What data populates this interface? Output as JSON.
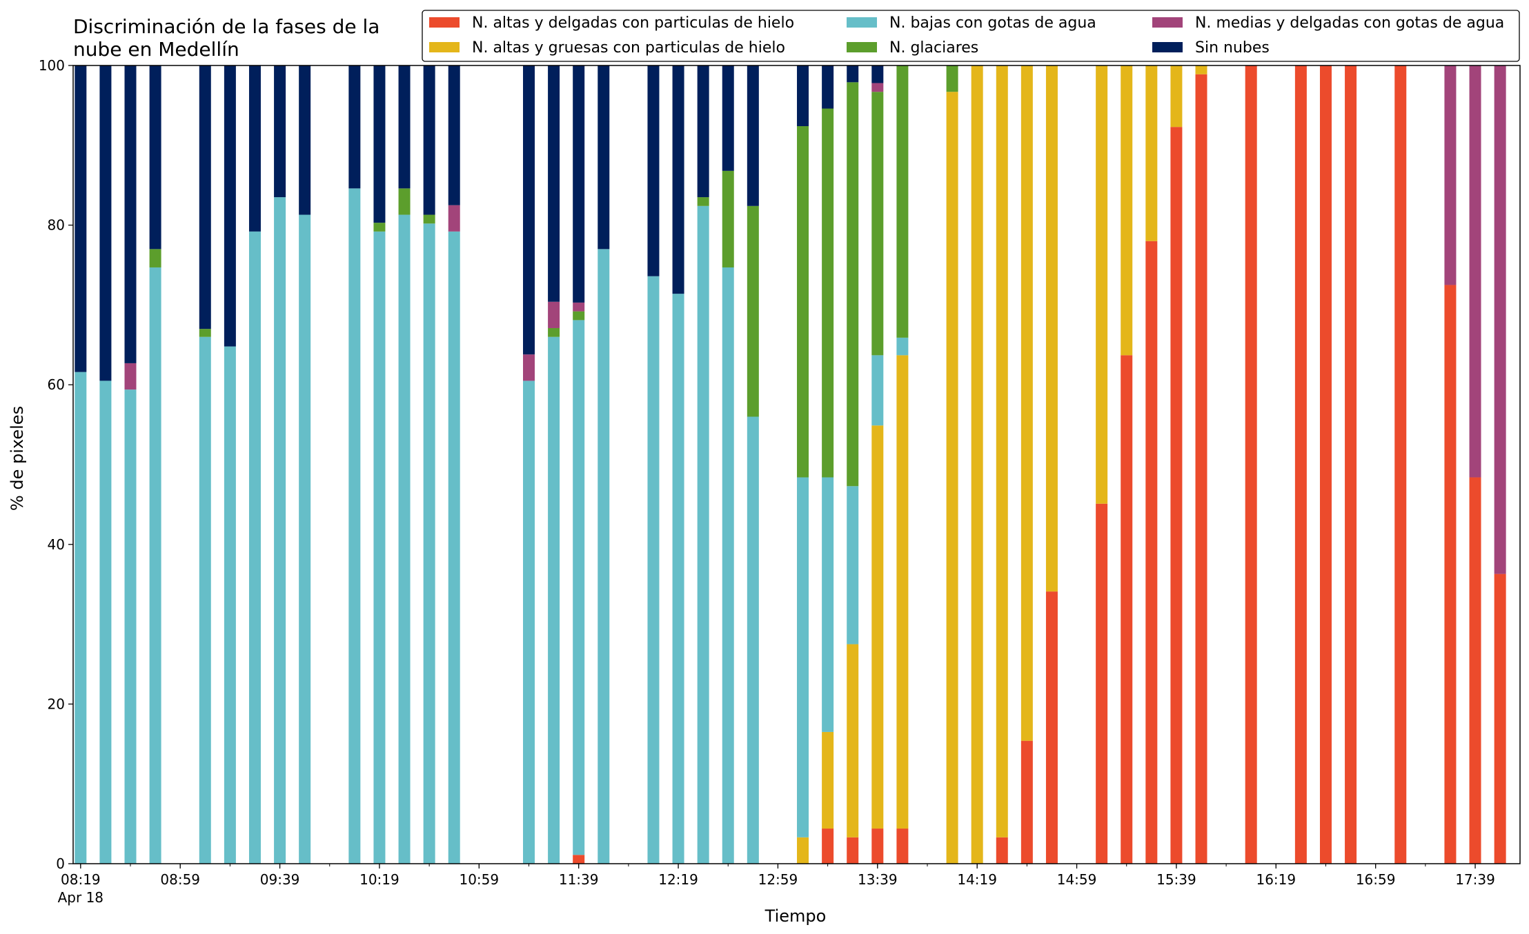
{
  "chart_data": {
    "type": "bar",
    "stacked": true,
    "title": "Discriminación de la fases de la\nnube en Medellín",
    "xlabel": "Tiempo",
    "ylabel": "% de pixeles",
    "ylim": [
      0,
      100
    ],
    "yticks": [
      0,
      20,
      40,
      60,
      80,
      100
    ],
    "x_range_minutes": [
      496,
      1077
    ],
    "xticks": [
      {
        "label": "08:19",
        "sub": "Apr 18",
        "m": 499
      },
      {
        "label": "08:59",
        "m": 539
      },
      {
        "label": "09:39",
        "m": 579
      },
      {
        "label": "10:19",
        "m": 619
      },
      {
        "label": "10:59",
        "m": 659
      },
      {
        "label": "11:39",
        "m": 699
      },
      {
        "label": "12:19",
        "m": 739
      },
      {
        "label": "12:59",
        "m": 779
      },
      {
        "label": "13:39",
        "m": 819
      },
      {
        "label": "14:19",
        "m": 859
      },
      {
        "label": "14:59",
        "m": 899
      },
      {
        "label": "15:39",
        "m": 939
      },
      {
        "label": "16:19",
        "m": 979
      },
      {
        "label": "16:59",
        "m": 1019
      },
      {
        "label": "17:39",
        "m": 1059
      }
    ],
    "grid": false,
    "legend_position": "top",
    "series": [
      {
        "name": "N. altas y delgadas con particulas de hielo",
        "color": "#ec4b2c"
      },
      {
        "name": "N. altas y gruesas con particulas de hielo",
        "color": "#e4b61a"
      },
      {
        "name": "N. bajas con gotas de agua",
        "color": "#66bec8"
      },
      {
        "name": "N. glaciares",
        "color": "#5c9e2c"
      },
      {
        "name": "N. medias y delgadas con gotas de agua",
        "color": "#a2447a"
      },
      {
        "name": "Sin nubes",
        "color": "#001f5b"
      }
    ],
    "bars": [
      {
        "m": 499,
        "v": [
          0,
          0,
          61.6,
          0,
          0,
          38.4
        ]
      },
      {
        "m": 509,
        "v": [
          0,
          0,
          60.5,
          0,
          0,
          39.5
        ]
      },
      {
        "m": 519,
        "v": [
          0,
          0,
          59.4,
          0,
          3.3,
          37.3
        ]
      },
      {
        "m": 529,
        "v": [
          0,
          0,
          74.7,
          2.3,
          0,
          23.0
        ]
      },
      {
        "m": 549,
        "v": [
          0,
          0,
          66.0,
          1.0,
          0,
          33.0
        ]
      },
      {
        "m": 559,
        "v": [
          0,
          0,
          64.8,
          0,
          0,
          35.2
        ]
      },
      {
        "m": 569,
        "v": [
          0,
          0,
          79.2,
          0,
          0,
          20.8
        ]
      },
      {
        "m": 579,
        "v": [
          0,
          0,
          83.5,
          0,
          0,
          16.5
        ]
      },
      {
        "m": 589,
        "v": [
          0,
          0,
          81.3,
          0,
          0,
          18.7
        ]
      },
      {
        "m": 609,
        "v": [
          0,
          0,
          84.6,
          0,
          0,
          15.4
        ]
      },
      {
        "m": 619,
        "v": [
          0,
          0,
          79.2,
          1.1,
          0,
          19.7
        ]
      },
      {
        "m": 629,
        "v": [
          0,
          0,
          81.3,
          3.3,
          0,
          15.4
        ]
      },
      {
        "m": 639,
        "v": [
          0,
          0,
          80.2,
          1.1,
          0,
          18.7
        ]
      },
      {
        "m": 649,
        "v": [
          0,
          0,
          79.2,
          0,
          3.3,
          17.5
        ]
      },
      {
        "m": 679,
        "v": [
          0,
          0,
          60.5,
          0,
          3.3,
          36.2
        ]
      },
      {
        "m": 689,
        "v": [
          0,
          0,
          66.0,
          1.1,
          3.3,
          29.6
        ]
      },
      {
        "m": 699,
        "v": [
          1.1,
          0,
          67.0,
          1.1,
          1.1,
          29.7
        ]
      },
      {
        "m": 709,
        "v": [
          0,
          0,
          77.0,
          0,
          0,
          23.0
        ]
      },
      {
        "m": 729,
        "v": [
          0,
          0,
          73.6,
          0,
          0,
          26.4
        ]
      },
      {
        "m": 739,
        "v": [
          0,
          0,
          71.4,
          0,
          0,
          28.6
        ]
      },
      {
        "m": 749,
        "v": [
          0,
          0,
          82.4,
          1.1,
          0,
          16.5
        ]
      },
      {
        "m": 759,
        "v": [
          0,
          0,
          74.7,
          12.1,
          0,
          13.2
        ]
      },
      {
        "m": 769,
        "v": [
          0,
          0,
          56.0,
          26.4,
          0,
          17.6
        ]
      },
      {
        "m": 789,
        "v": [
          0,
          3.3,
          45.1,
          44.0,
          0,
          7.6
        ]
      },
      {
        "m": 799,
        "v": [
          4.4,
          12.1,
          31.9,
          46.2,
          0,
          5.4
        ]
      },
      {
        "m": 809,
        "v": [
          3.3,
          24.2,
          19.8,
          50.6,
          0,
          2.1
        ]
      },
      {
        "m": 819,
        "v": [
          4.4,
          50.5,
          8.8,
          33.0,
          1.1,
          2.2
        ]
      },
      {
        "m": 829,
        "v": [
          4.4,
          59.3,
          2.2,
          34.1,
          0,
          0
        ]
      },
      {
        "m": 849,
        "v": [
          0,
          96.7,
          0,
          3.3,
          0,
          0
        ]
      },
      {
        "m": 859,
        "v": [
          0,
          100,
          0,
          0,
          0,
          0
        ]
      },
      {
        "m": 869,
        "v": [
          3.3,
          96.7,
          0,
          0,
          0,
          0
        ]
      },
      {
        "m": 879,
        "v": [
          15.4,
          84.6,
          0,
          0,
          0,
          0
        ]
      },
      {
        "m": 889,
        "v": [
          34.1,
          65.9,
          0,
          0,
          0,
          0
        ]
      },
      {
        "m": 909,
        "v": [
          45.1,
          54.9,
          0,
          0,
          0,
          0
        ]
      },
      {
        "m": 919,
        "v": [
          63.7,
          36.3,
          0,
          0,
          0,
          0
        ]
      },
      {
        "m": 929,
        "v": [
          78.0,
          22.0,
          0,
          0,
          0,
          0
        ]
      },
      {
        "m": 939,
        "v": [
          92.3,
          7.7,
          0,
          0,
          0,
          0
        ]
      },
      {
        "m": 949,
        "v": [
          98.9,
          1.1,
          0,
          0,
          0,
          0
        ]
      },
      {
        "m": 969,
        "v": [
          100,
          0,
          0,
          0,
          0,
          0
        ]
      },
      {
        "m": 989,
        "v": [
          100,
          0,
          0,
          0,
          0,
          0
        ]
      },
      {
        "m": 999,
        "v": [
          100,
          0,
          0,
          0,
          0,
          0
        ]
      },
      {
        "m": 1009,
        "v": [
          100,
          0,
          0,
          0,
          0,
          0
        ]
      },
      {
        "m": 1029,
        "v": [
          100,
          0,
          0,
          0,
          0,
          0
        ]
      },
      {
        "m": 1049,
        "v": [
          72.5,
          0,
          0,
          0,
          27.5,
          0
        ]
      },
      {
        "m": 1059,
        "v": [
          48.4,
          0,
          0,
          0,
          51.6,
          0
        ]
      },
      {
        "m": 1069,
        "v": [
          36.3,
          0,
          0,
          0,
          63.7,
          0
        ]
      }
    ]
  }
}
